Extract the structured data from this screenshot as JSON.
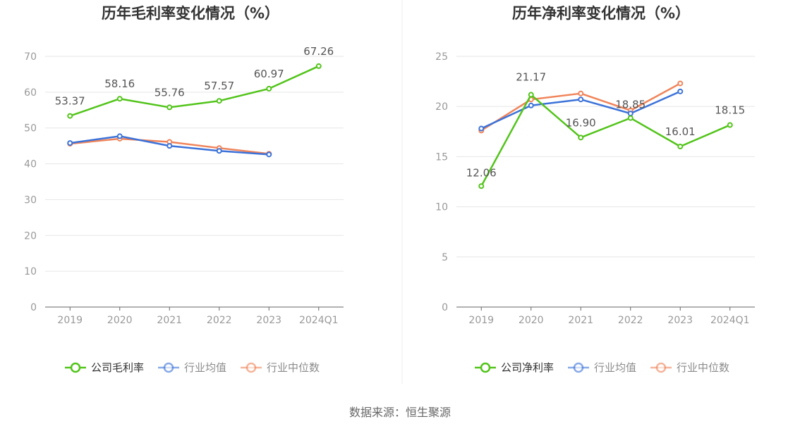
{
  "colors": {
    "company": "#52c41a",
    "industry_avg": "#3b72d9",
    "industry_median": "#f0845a",
    "grid": "#e6e6e6",
    "axis": "#666666"
  },
  "source": "数据来源：恒生聚源",
  "chart_data": [
    {
      "type": "line",
      "title": "历年毛利率变化情况（%）",
      "categories": [
        "2019",
        "2020",
        "2021",
        "2022",
        "2023",
        "2024Q1"
      ],
      "ylim": [
        0,
        70
      ],
      "yticks": [
        "0",
        "10",
        "20",
        "30",
        "40",
        "50",
        "60",
        "70"
      ],
      "grid": true,
      "legend_position": "bottom",
      "series": [
        {
          "name": "公司毛利率",
          "key": "company",
          "values": [
            53.37,
            58.16,
            55.76,
            57.57,
            60.97,
            67.26
          ],
          "labels": [
            "53.37",
            "58.16",
            "55.76",
            "57.57",
            "60.97",
            "67.26"
          ]
        },
        {
          "name": "行业均值",
          "key": "industry_avg",
          "values": [
            45.8,
            47.7,
            45.0,
            43.6,
            42.6,
            null
          ]
        },
        {
          "name": "行业中位数",
          "key": "industry_median",
          "values": [
            45.6,
            47.0,
            46.1,
            44.4,
            42.8,
            null
          ]
        }
      ]
    },
    {
      "type": "line",
      "title": "历年净利率变化情况（%）",
      "categories": [
        "2019",
        "2020",
        "2021",
        "2022",
        "2023",
        "2024Q1"
      ],
      "ylim": [
        0,
        25
      ],
      "yticks": [
        "0",
        "5",
        "10",
        "15",
        "20",
        "25"
      ],
      "grid": true,
      "legend_position": "bottom",
      "series": [
        {
          "name": "公司净利率",
          "key": "company",
          "values": [
            12.06,
            21.17,
            16.9,
            18.85,
            16.01,
            18.15
          ],
          "labels": [
            "12.06",
            "21.17",
            "16.90",
            "18.85",
            "16.01",
            "18.15"
          ]
        },
        {
          "name": "行业均值",
          "key": "industry_avg",
          "values": [
            17.8,
            20.1,
            20.7,
            19.3,
            21.5,
            null
          ]
        },
        {
          "name": "行业中位数",
          "key": "industry_median",
          "values": [
            17.6,
            20.7,
            21.3,
            19.6,
            22.3,
            null
          ]
        }
      ]
    }
  ]
}
